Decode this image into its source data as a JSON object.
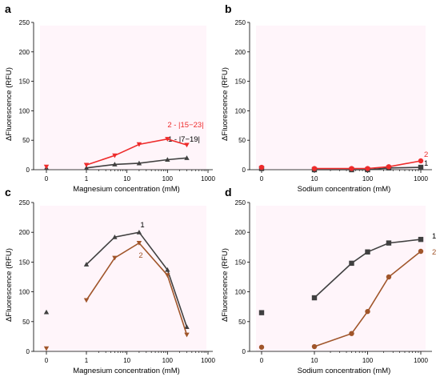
{
  "chart_data": [
    {
      "panel": "a",
      "type": "line",
      "xlabel": "Magnesium concentration (mM)",
      "ylabel": "ΔFluorescence (RFU)",
      "xscale": "log",
      "xticks": [
        "0",
        "1",
        "10",
        "100",
        "1000"
      ],
      "yticks": [
        "0",
        "50",
        "100",
        "150",
        "200",
        "250"
      ],
      "ylim": [
        0,
        250
      ],
      "series": [
        {
          "name": "1 - |7−19|",
          "color": "#404040",
          "marker": "triangle-up",
          "zero_value": 3,
          "points": [
            [
              1,
              3
            ],
            [
              5,
              9
            ],
            [
              20,
              11
            ],
            [
              100,
              17
            ],
            [
              300,
              20
            ]
          ]
        },
        {
          "name": "2 - |15−23|",
          "color": "#ee2b2b",
          "marker": "triangle-down",
          "zero_value": 5,
          "points": [
            [
              1,
              8
            ],
            [
              5,
              24
            ],
            [
              20,
              43
            ],
            [
              100,
              52
            ],
            [
              300,
              42
            ]
          ]
        }
      ]
    },
    {
      "panel": "b",
      "type": "line",
      "xlabel": "Sodium concentration (mM)",
      "ylabel": "ΔFluorescence (RFU)",
      "xscale": "log",
      "xticks": [
        "0",
        "10",
        "100",
        "1000"
      ],
      "yticks": [
        "0",
        "50",
        "100",
        "150",
        "200",
        "250"
      ],
      "ylim": [
        0,
        250
      ],
      "series": [
        {
          "name": "1",
          "color": "#404040",
          "marker": "square",
          "zero_value": 2,
          "points": [
            [
              10,
              0
            ],
            [
              50,
              0
            ],
            [
              100,
              0
            ],
            [
              250,
              3
            ],
            [
              1000,
              4
            ]
          ]
        },
        {
          "name": "2",
          "color": "#ee2b2b",
          "marker": "circle",
          "zero_value": 4,
          "points": [
            [
              10,
              2
            ],
            [
              50,
              2
            ],
            [
              100,
              2
            ],
            [
              250,
              5
            ],
            [
              1000,
              15
            ]
          ]
        }
      ]
    },
    {
      "panel": "c",
      "type": "line",
      "xlabel": "Magnesium concentration (mM)",
      "ylabel": "ΔFluorescence (RFU)",
      "xscale": "log",
      "xticks": [
        "0",
        "1",
        "10",
        "100",
        "1000"
      ],
      "yticks": [
        "0",
        "50",
        "100",
        "150",
        "200",
        "250"
      ],
      "ylim": [
        0,
        250
      ],
      "series": [
        {
          "name": "1",
          "color": "#404040",
          "marker": "triangle-up",
          "zero_value": 66,
          "points": [
            [
              1,
              146
            ],
            [
              5,
              192
            ],
            [
              20,
              200
            ],
            [
              100,
              137
            ],
            [
              300,
              41
            ]
          ]
        },
        {
          "name": "2",
          "color": "#a0552a",
          "marker": "triangle-down",
          "zero_value": 5,
          "points": [
            [
              1,
              86
            ],
            [
              5,
              157
            ],
            [
              20,
              182
            ],
            [
              100,
              128
            ],
            [
              300,
              28
            ]
          ]
        }
      ]
    },
    {
      "panel": "d",
      "type": "line",
      "xlabel": "Sodium concentration (mM)",
      "ylabel": "ΔFluorescence (RFU)",
      "xscale": "log",
      "xticks": [
        "0",
        "10",
        "100",
        "1000"
      ],
      "yticks": [
        "0",
        "50",
        "100",
        "150",
        "200",
        "250"
      ],
      "ylim": [
        0,
        250
      ],
      "series": [
        {
          "name": "1",
          "color": "#404040",
          "marker": "square",
          "zero_value": 65,
          "points": [
            [
              10,
              90
            ],
            [
              50,
              148
            ],
            [
              100,
              167
            ],
            [
              250,
              182
            ],
            [
              1000,
              188
            ]
          ]
        },
        {
          "name": "2",
          "color": "#a0552a",
          "marker": "circle",
          "zero_value": 7,
          "points": [
            [
              10,
              8
            ],
            [
              50,
              30
            ],
            [
              100,
              67
            ],
            [
              250,
              125
            ],
            [
              1000,
              168
            ]
          ]
        }
      ]
    }
  ]
}
